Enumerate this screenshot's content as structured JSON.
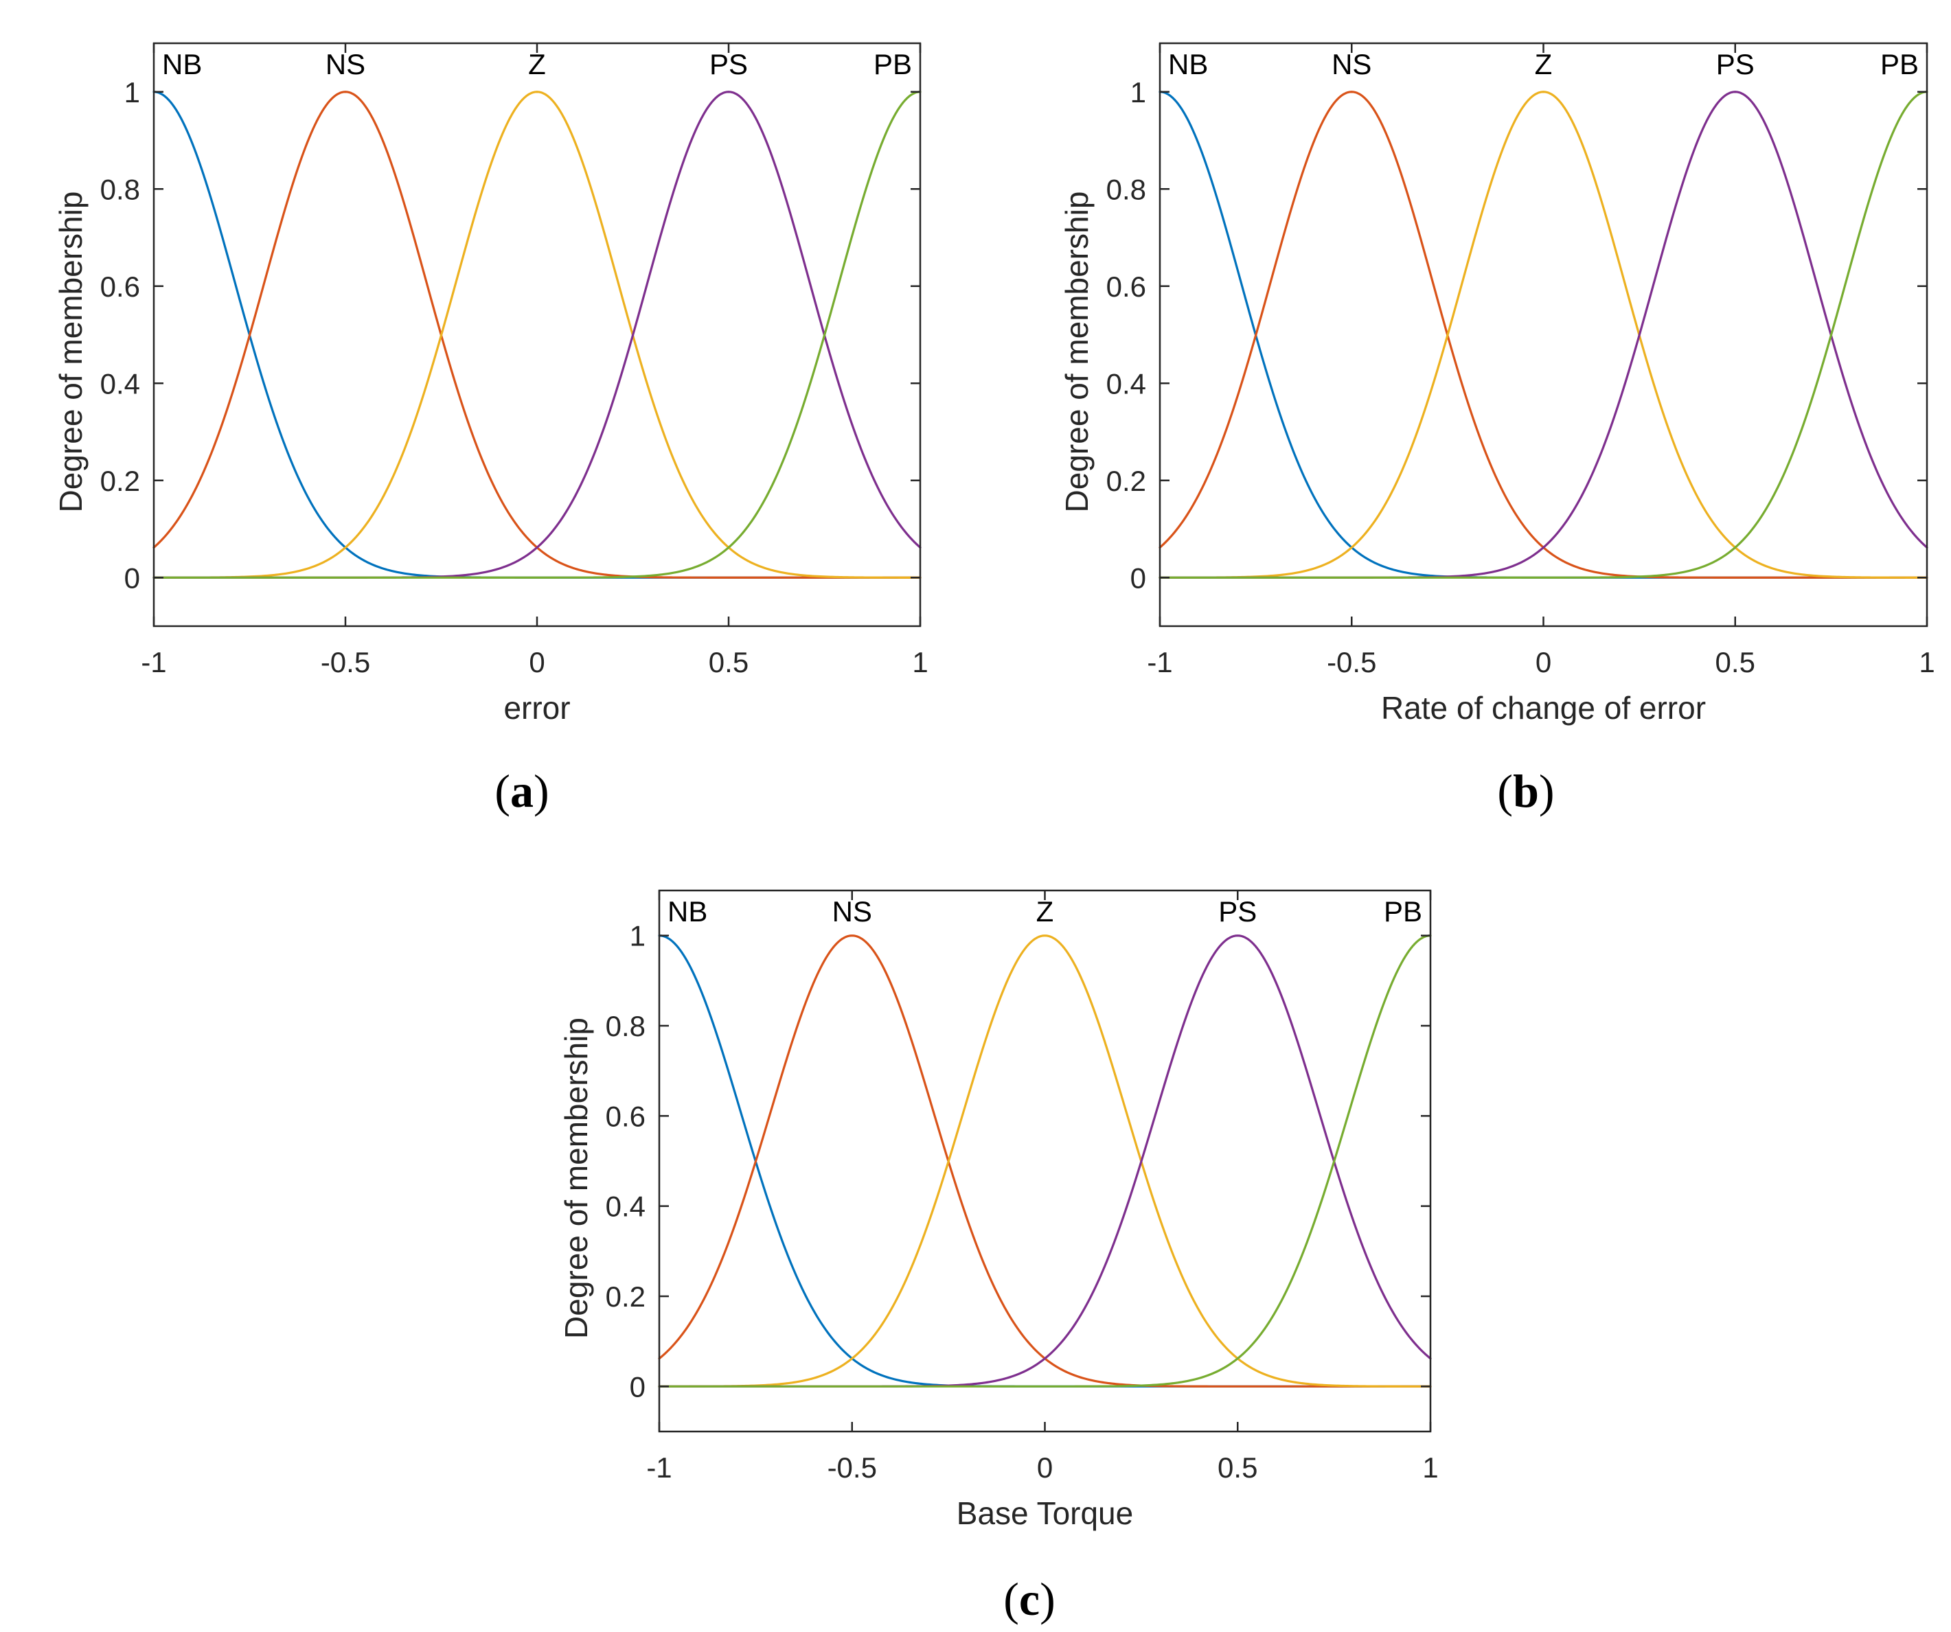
{
  "chart_data": [
    {
      "type": "line",
      "panel": "a",
      "caption": "(a)",
      "xlabel": "error",
      "ylabel": "Degree of membership",
      "xlim": [
        -1,
        1
      ],
      "ylim": [
        -0.1,
        1.1
      ],
      "xticks": [
        "-1",
        "-0.5",
        "0",
        "0.5",
        "1"
      ],
      "yticks": [
        "0",
        "0.2",
        "0.4",
        "0.6",
        "0.8",
        "1"
      ],
      "membership": "gaussian",
      "sigma": 0.212,
      "labels": [
        "NB",
        "NS",
        "Z",
        "PS",
        "PB"
      ],
      "series": [
        {
          "centre": -1.0,
          "color": "#0072BD"
        },
        {
          "centre": -0.5,
          "color": "#D95319"
        },
        {
          "centre": 0.0,
          "color": "#EDB120"
        },
        {
          "centre": 0.5,
          "color": "#7E2F8E"
        },
        {
          "centre": 1.0,
          "color": "#77AC30"
        }
      ]
    },
    {
      "type": "line",
      "panel": "b",
      "caption": "(b)",
      "xlabel": "Rate of change of error",
      "ylabel": "Degree of membership",
      "xlim": [
        -1,
        1
      ],
      "ylim": [
        -0.1,
        1.1
      ],
      "xticks": [
        "-1",
        "-0.5",
        "0",
        "0.5",
        "1"
      ],
      "yticks": [
        "0",
        "0.2",
        "0.4",
        "0.6",
        "0.8",
        "1"
      ],
      "membership": "gaussian",
      "sigma": 0.212,
      "labels": [
        "NB",
        "NS",
        "Z",
        "PS",
        "PB"
      ],
      "series": [
        {
          "centre": -1.0,
          "color": "#0072BD"
        },
        {
          "centre": -0.5,
          "color": "#D95319"
        },
        {
          "centre": 0.0,
          "color": "#EDB120"
        },
        {
          "centre": 0.5,
          "color": "#7E2F8E"
        },
        {
          "centre": 1.0,
          "color": "#77AC30"
        }
      ]
    },
    {
      "type": "line",
      "panel": "c",
      "caption": "(c)",
      "xlabel": "Base Torque",
      "ylabel": "Degree of membership",
      "xlim": [
        -1,
        1
      ],
      "ylim": [
        -0.1,
        1.1
      ],
      "xticks": [
        "-1",
        "-0.5",
        "0",
        "0.5",
        "1"
      ],
      "yticks": [
        "0",
        "0.2",
        "0.4",
        "0.6",
        "0.8",
        "1"
      ],
      "membership": "gaussian",
      "sigma": 0.212,
      "labels": [
        "NB",
        "NS",
        "Z",
        "PS",
        "PB"
      ],
      "series": [
        {
          "centre": -1.0,
          "color": "#0072BD"
        },
        {
          "centre": -0.5,
          "color": "#D95319"
        },
        {
          "centre": 0.0,
          "color": "#EDB120"
        },
        {
          "centre": 0.5,
          "color": "#7E2F8E"
        },
        {
          "centre": 1.0,
          "color": "#77AC30"
        }
      ]
    }
  ]
}
